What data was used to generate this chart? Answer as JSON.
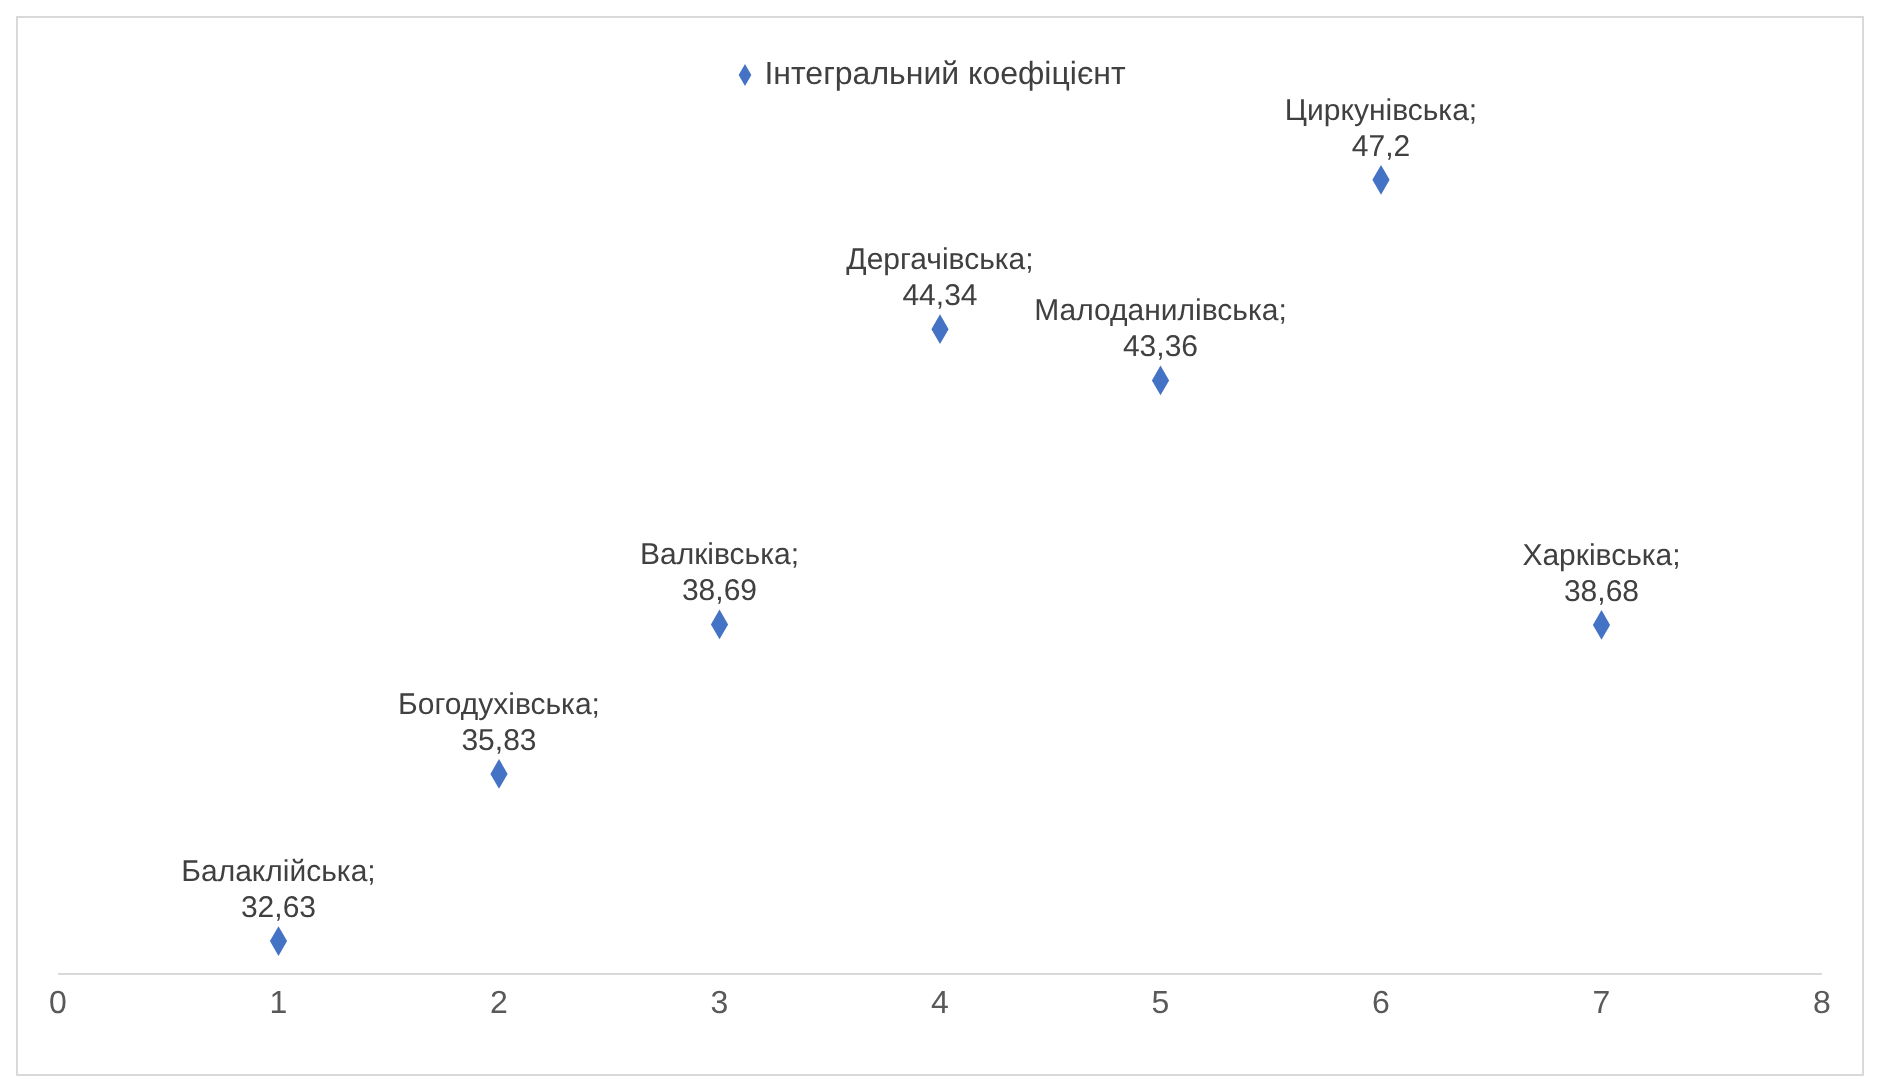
{
  "chart_data": {
    "type": "scatter",
    "x": [
      1,
      2,
      3,
      4,
      5,
      6,
      7
    ],
    "series": [
      {
        "name": "Інтегральний коефіцієнт",
        "color": "#4472c4",
        "values": [
          32.63,
          35.83,
          38.69,
          44.34,
          43.36,
          47.2,
          38.68
        ],
        "value_labels": [
          "Балаклійська; 32,63",
          "Богодухівська; 35,83",
          "Валківська; 38,69",
          "Дергачівська; 44,34",
          "Малоданилівська; 43,36",
          "Циркунівська; 47,2",
          "Харківська; 38,68"
        ]
      }
    ],
    "xlim": [
      0,
      8
    ],
    "xticks": [
      0,
      1,
      2,
      3,
      4,
      5,
      6,
      7,
      8
    ],
    "legend": "top",
    "marker": "diamond",
    "grid": false
  }
}
